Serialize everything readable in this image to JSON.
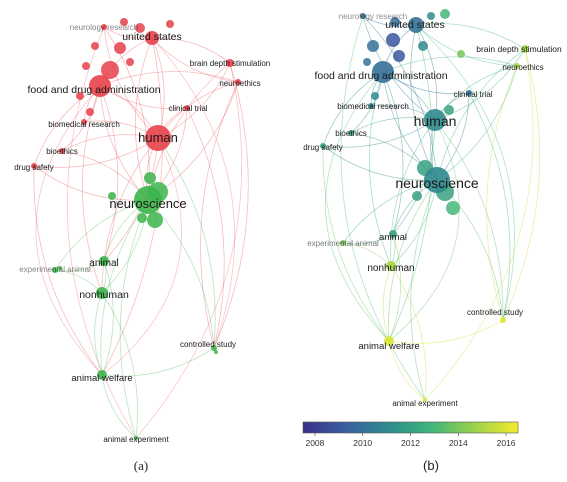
{
  "panel_a": {
    "caption": "(a)",
    "nodes": [
      {
        "id": "neurology_research",
        "label": "neurology research",
        "cluster": "red"
      },
      {
        "id": "united_states",
        "label": "united states",
        "cluster": "red"
      },
      {
        "id": "brain_depth_stimulation",
        "label": "brain depth stimulation",
        "cluster": "red"
      },
      {
        "id": "neuroethics",
        "label": "neuroethics",
        "cluster": "red"
      },
      {
        "id": "fda",
        "label": "food and drug administration",
        "cluster": "red"
      },
      {
        "id": "clinical_trial",
        "label": "clinical trial",
        "cluster": "red"
      },
      {
        "id": "biomedical_research",
        "label": "biomedical research",
        "cluster": "red"
      },
      {
        "id": "human",
        "label": "human",
        "cluster": "red"
      },
      {
        "id": "bioethics",
        "label": "bioethics",
        "cluster": "red"
      },
      {
        "id": "drug_safety",
        "label": "drug safety",
        "cluster": "red"
      },
      {
        "id": "neuroscience",
        "label": "neuroscience",
        "cluster": "green"
      },
      {
        "id": "animal",
        "label": "animal",
        "cluster": "green"
      },
      {
        "id": "experimental_animal",
        "label": "experimental animal",
        "cluster": "green"
      },
      {
        "id": "nonhuman",
        "label": "nonhuman",
        "cluster": "green"
      },
      {
        "id": "controlled_study",
        "label": "controlled study",
        "cluster": "green"
      },
      {
        "id": "animal_welfare",
        "label": "animal welfare",
        "cluster": "green"
      },
      {
        "id": "animal_experiment",
        "label": "animal experiment",
        "cluster": "green"
      }
    ],
    "colors": {
      "red": "#e8414b",
      "green": "#3cb44b"
    }
  },
  "panel_b": {
    "caption": "(b)",
    "nodes": [
      {
        "id": "neurology_research",
        "label": "neurology research",
        "year": 2010
      },
      {
        "id": "united_states",
        "label": "united states",
        "year": 2010
      },
      {
        "id": "brain_depth_stimulation",
        "label": "brain depth stimulation",
        "year": 2015
      },
      {
        "id": "neuroethics",
        "label": "neuroethics",
        "year": 2015
      },
      {
        "id": "fda",
        "label": "food and drug administration",
        "year": 2010
      },
      {
        "id": "clinical_trial",
        "label": "clinical trial",
        "year": 2010
      },
      {
        "id": "biomedical_research",
        "label": "biomedical research",
        "year": 2011
      },
      {
        "id": "human",
        "label": "human",
        "year": 2011
      },
      {
        "id": "bioethics",
        "label": "bioethics",
        "year": 2012
      },
      {
        "id": "drug_safety",
        "label": "drug safety",
        "year": 2012
      },
      {
        "id": "neuroscience",
        "label": "neuroscience",
        "year": 2011
      },
      {
        "id": "animal",
        "label": "animal",
        "year": 2012
      },
      {
        "id": "experimental_animal",
        "label": "experimental animal",
        "year": 2014
      },
      {
        "id": "nonhuman",
        "label": "nonhuman",
        "year": 2015
      },
      {
        "id": "controlled_study",
        "label": "controlled study",
        "year": 2016
      },
      {
        "id": "animal_welfare",
        "label": "animal welfare",
        "year": 2016
      },
      {
        "id": "animal_experiment",
        "label": "animal experiment",
        "year": 2016
      }
    ],
    "colorbar": {
      "ticks": [
        "2008",
        "2010",
        "2012",
        "2014",
        "2016"
      ],
      "range": [
        2007.5,
        2016.5
      ],
      "stops": [
        "#3b2f8a",
        "#3a5fa0",
        "#2f8c8c",
        "#3fb67a",
        "#9dd24a",
        "#f3ec2e"
      ]
    }
  }
}
